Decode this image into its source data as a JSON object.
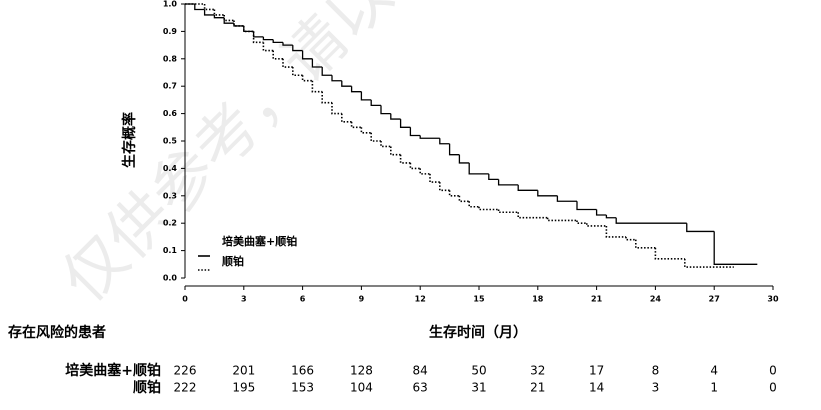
{
  "chart_data": {
    "type": "line",
    "step": true,
    "ylabel": "生存概率",
    "xlabel": "生存时间（月）",
    "watermark": "仅供参考，请以",
    "xlim": [
      0,
      30
    ],
    "xticks": [
      0,
      3,
      6,
      9,
      12,
      15,
      18,
      21,
      24,
      27,
      30
    ],
    "ylim": [
      0,
      1
    ],
    "yticks": [
      {
        "value": 0,
        "label": "0.0"
      },
      0.1,
      0.2,
      0.3,
      0.4,
      0.5,
      0.6,
      0.7,
      0.8,
      0.9,
      {
        "value": 1,
        "label": "1.0"
      }
    ],
    "series": [
      {
        "name": "培美曲塞+顺铂",
        "color": "#000000",
        "dash": false,
        "x": [
          0,
          0.5,
          1,
          1.5,
          2,
          2.5,
          3,
          3.5,
          4,
          4.5,
          5,
          5.5,
          6,
          6.5,
          7,
          7.5,
          8,
          8.5,
          9,
          9.5,
          10,
          10.5,
          11,
          11.5,
          12,
          13,
          13.5,
          14,
          14.5,
          15.5,
          16,
          17,
          18,
          19,
          20,
          21,
          21.5,
          22,
          25.6,
          27.0,
          29.2
        ],
        "values": [
          1.0,
          0.98,
          0.96,
          0.95,
          0.93,
          0.92,
          0.9,
          0.88,
          0.87,
          0.86,
          0.85,
          0.83,
          0.8,
          0.77,
          0.74,
          0.72,
          0.7,
          0.68,
          0.65,
          0.63,
          0.6,
          0.58,
          0.55,
          0.52,
          0.51,
          0.49,
          0.45,
          0.42,
          0.38,
          0.36,
          0.34,
          0.32,
          0.3,
          0.28,
          0.25,
          0.23,
          0.22,
          0.2,
          0.17,
          0.05,
          0.05
        ]
      },
      {
        "name": "顺铂",
        "color": "#000000",
        "dash": true,
        "x": [
          0,
          1,
          1.5,
          2,
          2.5,
          3,
          3.5,
          4,
          4.5,
          5,
          5.5,
          6,
          6.5,
          7,
          7.5,
          8,
          8.5,
          9,
          9.5,
          10,
          10.5,
          11,
          11.5,
          12,
          12.5,
          13,
          13.5,
          14,
          14.5,
          15,
          16,
          17,
          18.5,
          20,
          20.5,
          21.5,
          22.5,
          23,
          24,
          25.5,
          28
        ],
        "values": [
          1.0,
          0.98,
          0.96,
          0.94,
          0.92,
          0.9,
          0.86,
          0.83,
          0.8,
          0.77,
          0.74,
          0.72,
          0.68,
          0.64,
          0.6,
          0.57,
          0.55,
          0.53,
          0.5,
          0.48,
          0.45,
          0.42,
          0.4,
          0.38,
          0.35,
          0.32,
          0.3,
          0.28,
          0.26,
          0.25,
          0.24,
          0.22,
          0.21,
          0.2,
          0.19,
          0.15,
          0.14,
          0.11,
          0.07,
          0.04,
          0.04
        ]
      }
    ],
    "risk_table": {
      "title": "存在风险的患者",
      "rows": [
        {
          "name": "培美曲塞+顺铂",
          "values": [
            226,
            201,
            166,
            128,
            84,
            50,
            32,
            17,
            8,
            4,
            0
          ]
        },
        {
          "name": "顺铂",
          "values": [
            222,
            195,
            153,
            104,
            63,
            31,
            21,
            14,
            3,
            1,
            0
          ]
        }
      ]
    }
  }
}
